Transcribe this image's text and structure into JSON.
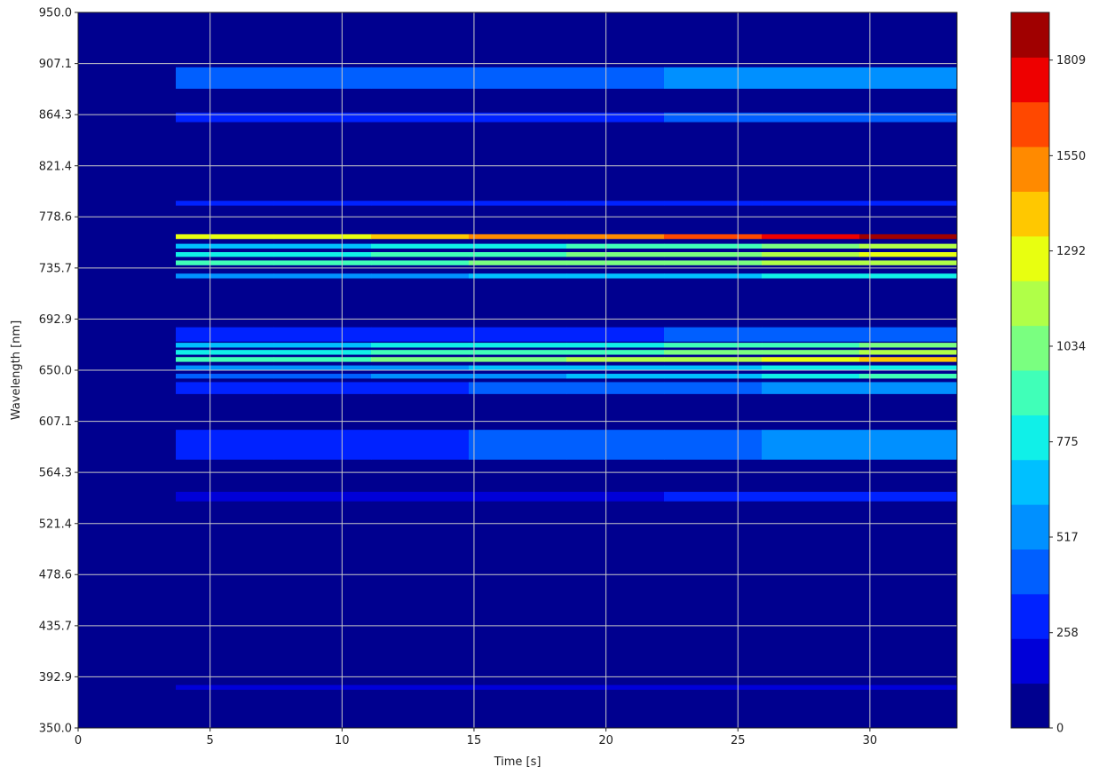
{
  "chart_data": {
    "type": "heatmap",
    "title": "",
    "xlabel": "Time [s]",
    "ylabel": "Wavelength [nm]",
    "xlim": [
      0,
      33.3
    ],
    "ylim": [
      350.0,
      950.0
    ],
    "x_ticks": [
      0,
      5,
      10,
      15,
      20,
      25,
      30
    ],
    "y_ticks": [
      "350.0",
      "392.9",
      "435.7",
      "478.6",
      "521.4",
      "564.3",
      "607.1",
      "650.0",
      "692.9",
      "735.7",
      "778.6",
      "821.4",
      "864.3",
      "907.1",
      "950.0"
    ],
    "grid": true,
    "colormap": "jet",
    "colorbar": {
      "range": [
        0,
        1938
      ],
      "levels": 15,
      "ticks": [
        "0",
        "258",
        "517",
        "775",
        "1034",
        "1292",
        "1550",
        "1809"
      ],
      "colors": [
        "#00008f",
        "#0000d8",
        "#0022ff",
        "#005fff",
        "#0090ff",
        "#00c0ff",
        "#10f0e8",
        "#40ffb8",
        "#7aff80",
        "#b0ff48",
        "#e8ff10",
        "#ffc800",
        "#ff8a00",
        "#ff4800",
        "#ee0000",
        "#a00000"
      ]
    },
    "signal_start_s": 3.7,
    "bands": [
      {
        "from_nm": 886,
        "to_nm": 904,
        "level_start": 3,
        "level_end": 4
      },
      {
        "from_nm": 858,
        "to_nm": 866,
        "level_start": 2,
        "level_end": 3
      },
      {
        "from_nm": 788,
        "to_nm": 792,
        "level_start": 2,
        "level_end": 2
      },
      {
        "from_nm": 760,
        "to_nm": 764,
        "level_start": 10,
        "level_end": 15
      },
      {
        "from_nm": 752,
        "to_nm": 756,
        "level_start": 5,
        "level_end": 9
      },
      {
        "from_nm": 745,
        "to_nm": 749,
        "level_start": 6,
        "level_end": 10
      },
      {
        "from_nm": 738,
        "to_nm": 742,
        "level_start": 7,
        "level_end": 9
      },
      {
        "from_nm": 727,
        "to_nm": 731,
        "level_start": 4,
        "level_end": 6
      },
      {
        "from_nm": 674,
        "to_nm": 686,
        "level_start": 2,
        "level_end": 3
      },
      {
        "from_nm": 669,
        "to_nm": 673,
        "level_start": 5,
        "level_end": 8
      },
      {
        "from_nm": 663,
        "to_nm": 667,
        "level_start": 6,
        "level_end": 9
      },
      {
        "from_nm": 657,
        "to_nm": 661,
        "level_start": 7,
        "level_end": 11
      },
      {
        "from_nm": 650,
        "to_nm": 654,
        "level_start": 4,
        "level_end": 6
      },
      {
        "from_nm": 643,
        "to_nm": 647,
        "level_start": 3,
        "level_end": 7
      },
      {
        "from_nm": 630,
        "to_nm": 640,
        "level_start": 2,
        "level_end": 4
      },
      {
        "from_nm": 575,
        "to_nm": 600,
        "level_start": 2,
        "level_end": 4
      },
      {
        "from_nm": 540,
        "to_nm": 548,
        "level_start": 1,
        "level_end": 2
      },
      {
        "from_nm": 382,
        "to_nm": 386,
        "level_start": 1,
        "level_end": 1
      }
    ]
  }
}
